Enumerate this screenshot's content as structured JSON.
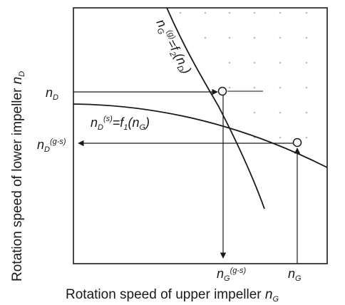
{
  "diagram": {
    "axes": {
      "x_label_text": "Rotation speed of upper impeller ",
      "x_label_var": "n",
      "x_label_sub": "G",
      "y_label_text": "Rotation speed of lower impeller ",
      "y_label_var": "n",
      "y_label_sub": "D"
    },
    "curves": {
      "f2": {
        "var": "n",
        "sub": "G",
        "sup": "(g)",
        "eq": "=f",
        "fsub": "2",
        "arg_open": "(",
        "arg_var": "n",
        "arg_sub": "D",
        "arg_close": ")"
      },
      "f1": {
        "var": "n",
        "sub": "D",
        "sup": "(s)",
        "eq": "=f",
        "fsub": "1",
        "arg_open": "(",
        "arg_var": "n",
        "arg_sub": "G",
        "arg_close": ")"
      }
    },
    "markers": {
      "nD": {
        "var": "n",
        "sub": "D"
      },
      "nDgs": {
        "var": "n",
        "sub": "D",
        "sup": "(g-s)"
      },
      "nGgs": {
        "var": "n",
        "sub": "G",
        "sup": "(g-s)"
      },
      "nG": {
        "var": "n",
        "sub": "G"
      }
    },
    "colors": {
      "line": "#1a1a1a",
      "region_dots": "#bcbcbc",
      "background": "#ffffff"
    }
  }
}
